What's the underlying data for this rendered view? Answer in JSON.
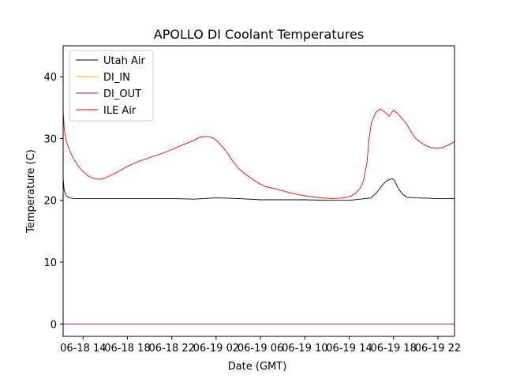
{
  "chart_data": {
    "type": "line",
    "title": "APOLLO DI Coolant Temperatures",
    "xlabel": "Date (GMT)",
    "ylabel": "Temperature (C)",
    "xlim": [
      12.2,
      47.5
    ],
    "ylim": [
      -2,
      45
    ],
    "x_unit": "hours since 06-18 00:00 GMT",
    "yticks": [
      0,
      10,
      20,
      30,
      40
    ],
    "xticks": [
      {
        "value": 14,
        "label": "06-18 14"
      },
      {
        "value": 18,
        "label": "06-18 18"
      },
      {
        "value": 22,
        "label": "06-18 22"
      },
      {
        "value": 26,
        "label": "06-19 02"
      },
      {
        "value": 30,
        "label": "06-19 06"
      },
      {
        "value": 34,
        "label": "06-19 10"
      },
      {
        "value": 38,
        "label": "06-19 14"
      },
      {
        "value": 42,
        "label": "06-19 18"
      },
      {
        "value": 46,
        "label": "06-19 22"
      }
    ],
    "legend_position": "upper-left",
    "series": [
      {
        "name": "Utah Air",
        "color": "#000000",
        "x": [
          12.2,
          12.3,
          12.5,
          12.8,
          13.2,
          14,
          16,
          18,
          20,
          22,
          24,
          26,
          28,
          30,
          32,
          34,
          36,
          38,
          39.5,
          40,
          40.5,
          41,
          41.4,
          41.7,
          41.9,
          42.1,
          42.4,
          42.8,
          43.2,
          44,
          46,
          47.5
        ],
        "y": [
          23.5,
          21.5,
          20.7,
          20.4,
          20.3,
          20.3,
          20.3,
          20.3,
          20.3,
          20.3,
          20.2,
          20.4,
          20.3,
          20.1,
          20.1,
          20.1,
          20.0,
          20.0,
          20.3,
          20.4,
          21.3,
          22.5,
          23.2,
          23.4,
          23.5,
          23.2,
          22.0,
          21.0,
          20.5,
          20.4,
          20.3,
          20.3
        ]
      },
      {
        "name": "DI_IN",
        "color": "#dbb40c",
        "x": [
          12.2,
          47.5
        ],
        "y": [
          0,
          0
        ]
      },
      {
        "name": "DI_OUT",
        "color": "#7e1e9c",
        "x": [
          12.2,
          47.5
        ],
        "y": [
          0,
          0
        ]
      },
      {
        "name": "ILE Air",
        "color": "#ff0000",
        "x": [
          12.2,
          12.3,
          12.5,
          12.8,
          13.2,
          13.8,
          14.4,
          15,
          15.6,
          16.2,
          17,
          18,
          19,
          20,
          21,
          22,
          23,
          24,
          24.5,
          25,
          25.4,
          25.8,
          26.2,
          26.6,
          27,
          27.5,
          28,
          28.6,
          29.2,
          29.8,
          30.5,
          31.5,
          32.5,
          33.5,
          34.5,
          35.5,
          36.5,
          37.5,
          38.2,
          38.6,
          39,
          39.3,
          39.6,
          39.8,
          40,
          40.4,
          40.8,
          41.2,
          41.6,
          42,
          42.4,
          42.8,
          43.2,
          43.6,
          44,
          44.5,
          45,
          45.5,
          46,
          46.5,
          47,
          47.5
        ],
        "y": [
          34.5,
          31.5,
          29.5,
          28.0,
          26.5,
          25.0,
          24.0,
          23.5,
          23.4,
          23.8,
          24.5,
          25.5,
          26.3,
          26.9,
          27.5,
          28.2,
          29.0,
          29.7,
          30.2,
          30.3,
          30.3,
          30.0,
          29.4,
          28.6,
          27.7,
          26.3,
          25.2,
          24.3,
          23.5,
          22.8,
          22.2,
          21.8,
          21.3,
          20.9,
          20.6,
          20.4,
          20.3,
          20.4,
          20.7,
          21.2,
          22.0,
          23.2,
          26.0,
          30.0,
          32.5,
          34.2,
          34.8,
          34.3,
          33.6,
          34.6,
          34.0,
          33.2,
          32.3,
          31.0,
          30.0,
          29.3,
          28.8,
          28.5,
          28.4,
          28.6,
          29.0,
          29.5
        ]
      }
    ]
  }
}
